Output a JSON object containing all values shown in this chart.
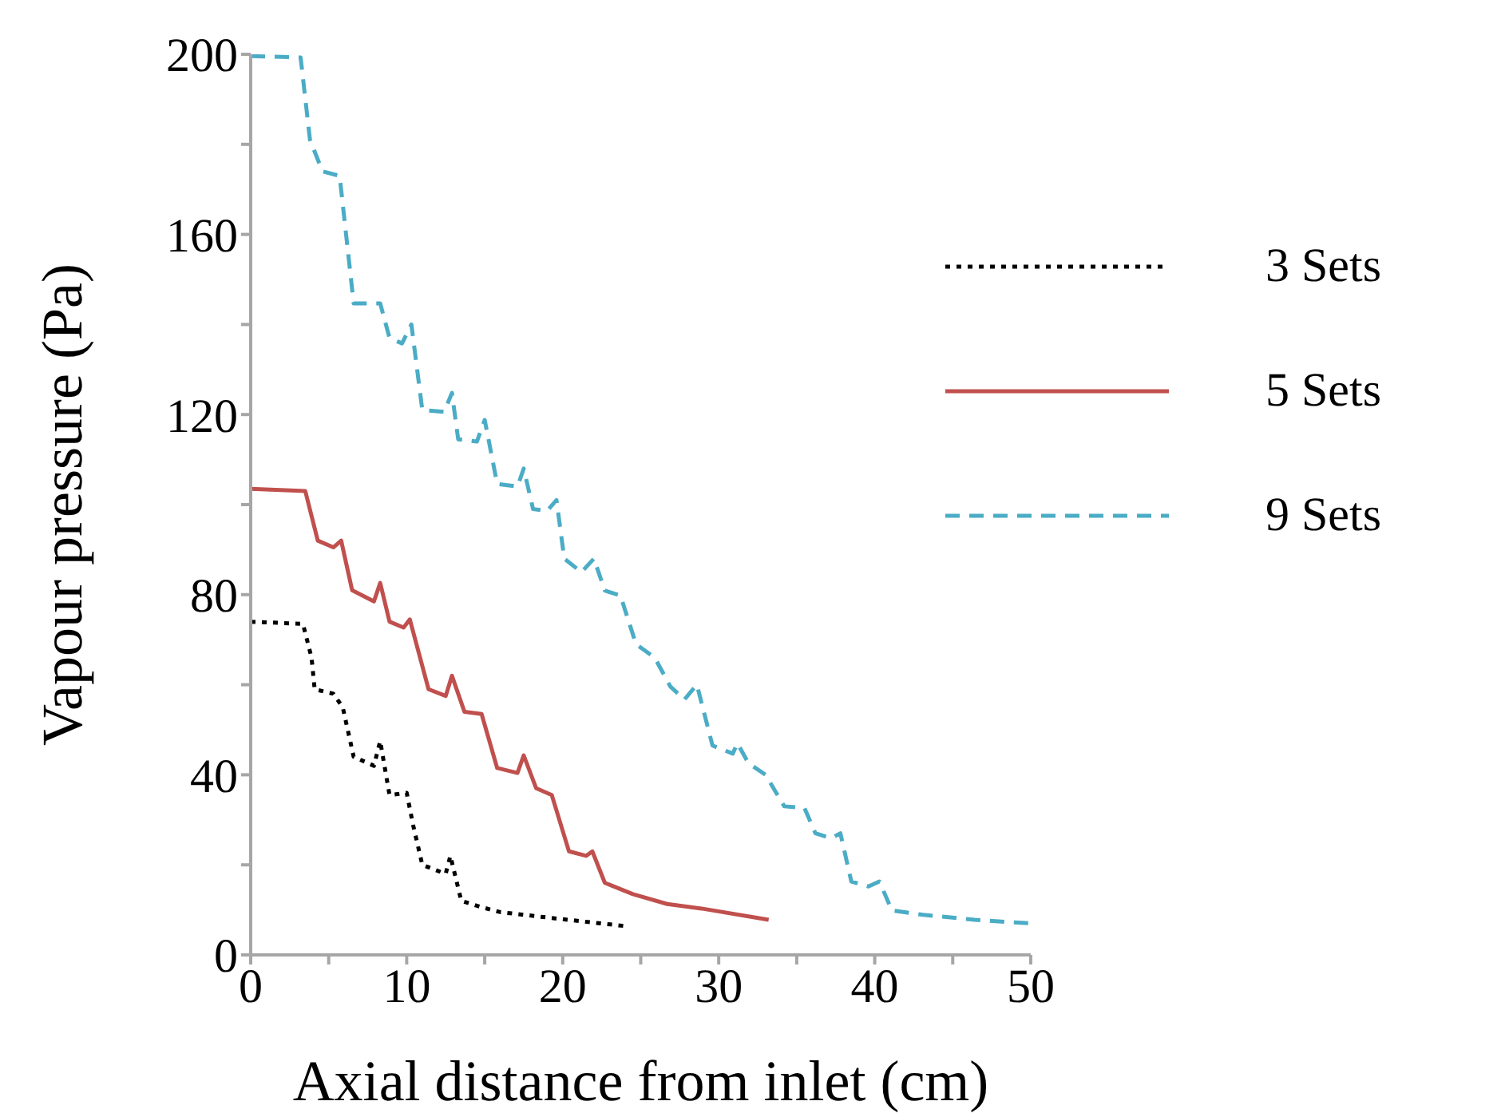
{
  "chart_data": {
    "type": "line",
    "xlabel": "Axial distance from inlet (cm)",
    "ylabel": "Vapour pressure (Pa)",
    "xlim": [
      0,
      50
    ],
    "xticks": [
      0,
      {
        "value": 5,
        "label": null
      },
      10,
      {
        "value": 15,
        "label": null
      },
      20,
      {
        "value": 25,
        "label": null
      },
      30,
      {
        "value": 35,
        "label": null
      },
      40,
      {
        "value": 45,
        "label": null
      },
      50
    ],
    "ylim": [
      0,
      200
    ],
    "yticks": [
      0,
      {
        "value": 20,
        "label": null
      },
      40,
      {
        "value": 60,
        "label": null
      },
      80,
      {
        "value": 100,
        "label": null
      },
      120,
      {
        "value": 140,
        "label": null
      },
      160,
      {
        "value": 180,
        "label": null
      },
      200
    ],
    "grid": false,
    "legend": "top right",
    "marker": "none",
    "series": [
      {
        "name": "3 Sets",
        "color": "#000000",
        "line_style": "dotted",
        "x": [
          0,
          3.35,
          3.9,
          4.1,
          5.3,
          5.9,
          6.6,
          7.9,
          8.3,
          8.9,
          10,
          10.4,
          11,
          12.5,
          12.8,
          13.5,
          14.8,
          16,
          19.3,
          24
        ],
        "values": [
          74,
          73.5,
          66,
          59,
          58,
          55,
          44,
          42,
          47.5,
          35.5,
          36,
          29,
          20,
          18,
          22,
          12,
          10.6,
          9.5,
          8.2,
          6.4
        ]
      },
      {
        "name": "5 Sets",
        "color": "#c0504d",
        "line_style": "solid",
        "x": [
          0,
          3.5,
          4.3,
          5.3,
          5.8,
          6.5,
          7.9,
          8.3,
          8.9,
          9.8,
          10.2,
          11.4,
          12.5,
          12.9,
          13.7,
          14.8,
          15.8,
          17.1,
          17.5,
          18.3,
          19.3,
          20.4,
          21.5,
          21.9,
          22.7,
          24.5,
          26.7,
          28.9,
          33.2
        ],
        "values": [
          103.5,
          103,
          92,
          90.5,
          92,
          81,
          78.5,
          82.6,
          74,
          72.7,
          74.5,
          59,
          57.5,
          62,
          54,
          53.5,
          41.5,
          40.4,
          44.3,
          37,
          35.5,
          23,
          22,
          23,
          16,
          13.5,
          11.3,
          10.3,
          7.8
        ]
      },
      {
        "name": "9 Sets",
        "color": "#4bacc6",
        "line_style": "dashed",
        "x": [
          0,
          3.2,
          3.8,
          4.6,
          5.7,
          6.6,
          8.3,
          8.9,
          9.7,
          10.3,
          11,
          12.4,
          12.9,
          13.3,
          14.5,
          15,
          15.8,
          17.1,
          17.5,
          18.1,
          19,
          19.6,
          20.1,
          21.2,
          22,
          22.7,
          23.7,
          24.7,
          25.9,
          26.9,
          27.8,
          28.6,
          29.6,
          30.9,
          31.2,
          31.9,
          33,
          34.2,
          35.5,
          36.2,
          37.2,
          37.8,
          38.5,
          39.6,
          40.3,
          41.1,
          43.1,
          46.4,
          50
        ],
        "values": [
          199.6,
          199.3,
          181,
          174,
          173,
          144.7,
          144.7,
          137,
          135.8,
          140,
          121,
          120.6,
          124.8,
          114.5,
          114,
          118.8,
          104.6,
          104,
          108,
          99,
          98.6,
          101,
          88,
          85,
          88,
          80.9,
          79.8,
          69,
          66,
          59.6,
          56.7,
          60,
          46.5,
          44.7,
          47,
          42.6,
          40,
          33,
          32.6,
          27,
          25.9,
          27,
          16.3,
          15.2,
          16.3,
          9.9,
          8.9,
          7.8,
          7
        ]
      }
    ]
  }
}
